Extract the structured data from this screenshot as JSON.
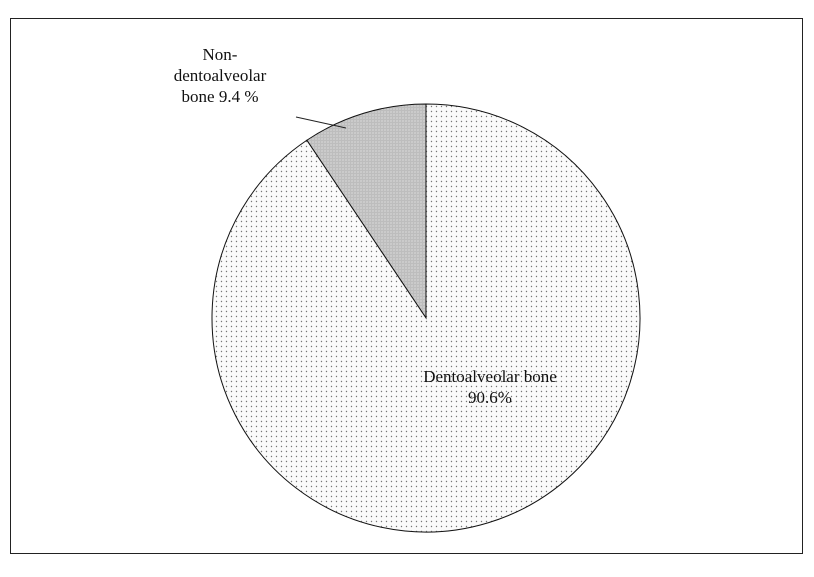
{
  "chart_data": {
    "type": "pie",
    "categories": [
      "Non-dentoalveolar bone",
      "Dentoalveolar bone"
    ],
    "values": [
      9.4,
      90.6
    ],
    "value_labels": [
      "9.4 %",
      "90.6%"
    ],
    "colors": [
      "#c8c8c8",
      "#f7f7f7"
    ]
  }
}
